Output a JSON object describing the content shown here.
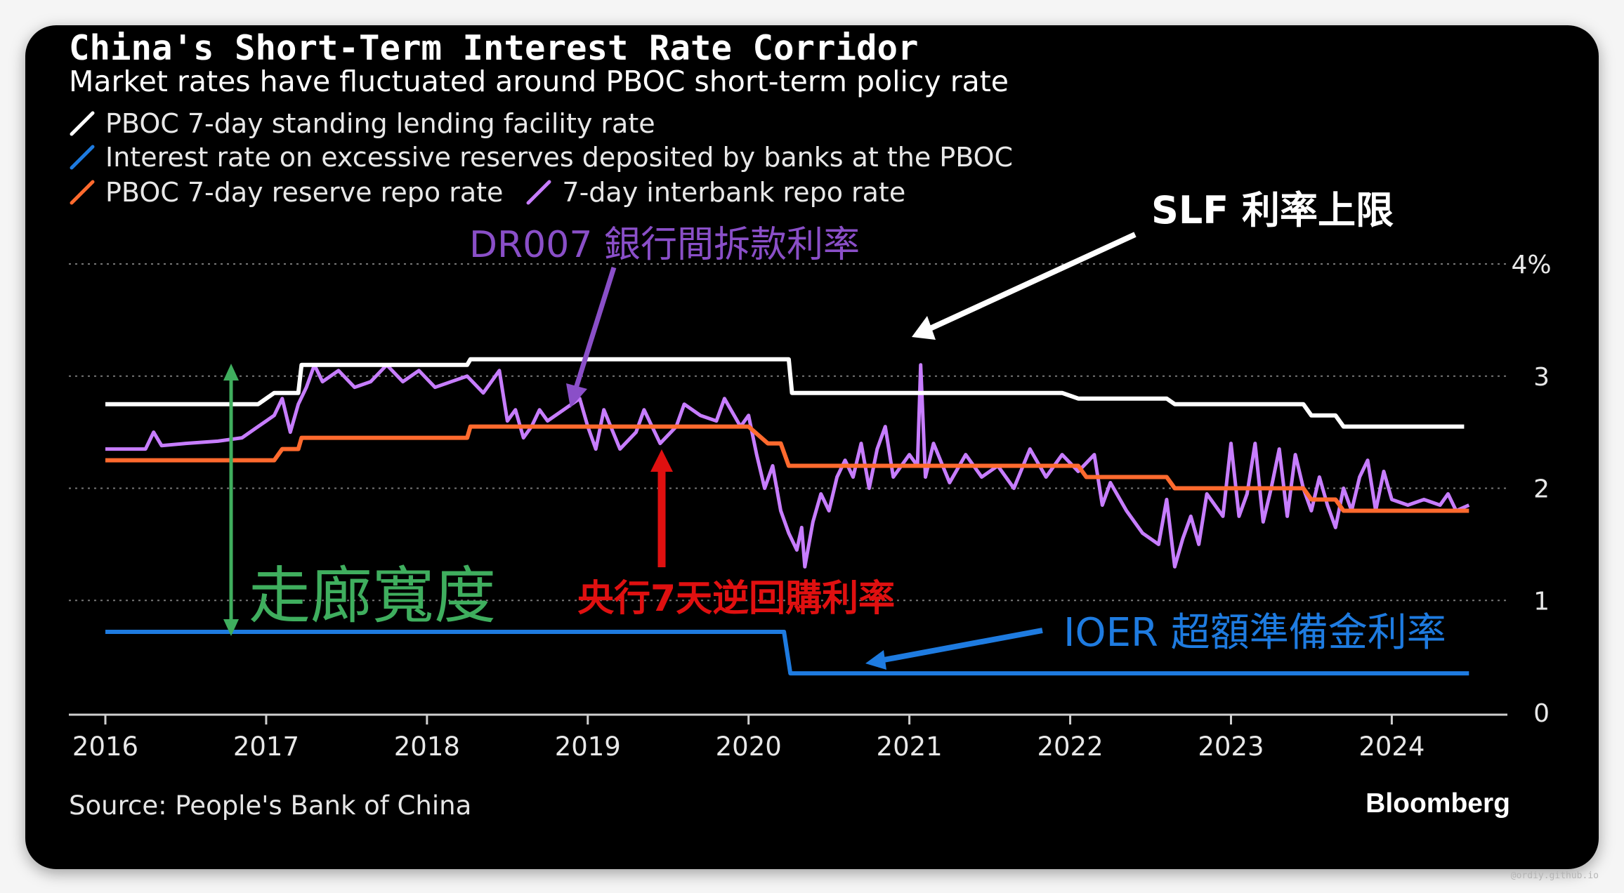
{
  "chart_data": {
    "type": "line",
    "title": "China's Short-Term Interest Rate Corridor",
    "subtitle": "Market rates have fluctuated around PBOC short-term policy rate",
    "ylim": [
      0,
      4
    ],
    "y_ticks": [
      "0",
      "1",
      "2",
      "3",
      "4%"
    ],
    "y_tick_values": [
      0,
      1,
      2,
      3,
      4
    ],
    "xlim": [
      2016,
      2024.85
    ],
    "x_ticks": [
      "2016",
      "2017",
      "2018",
      "2019",
      "2020",
      "2021",
      "2022",
      "2023",
      "2024"
    ],
    "x_tick_values": [
      2016,
      2017,
      2018,
      2019,
      2020,
      2021,
      2022,
      2023,
      2024
    ],
    "grid": true,
    "legend_position": "top-left",
    "series": [
      {
        "name": "PBOC 7-day standing lending facility rate",
        "color": "#ffffff",
        "step": true,
        "points": [
          [
            2016.0,
            2.75
          ],
          [
            2016.95,
            2.75
          ],
          [
            2017.05,
            2.85
          ],
          [
            2017.2,
            2.85
          ],
          [
            2017.22,
            3.1
          ],
          [
            2018.25,
            3.1
          ],
          [
            2018.27,
            3.15
          ],
          [
            2020.25,
            3.15
          ],
          [
            2020.27,
            2.85
          ],
          [
            2021.95,
            2.85
          ],
          [
            2022.05,
            2.8
          ],
          [
            2022.6,
            2.8
          ],
          [
            2022.65,
            2.75
          ],
          [
            2023.45,
            2.75
          ],
          [
            2023.5,
            2.65
          ],
          [
            2023.65,
            2.65
          ],
          [
            2023.7,
            2.55
          ],
          [
            2024.45,
            2.55
          ]
        ]
      },
      {
        "name": "Interest rate on excessive reserves deposited by banks at the PBOC",
        "color": "#1e7be0",
        "step": true,
        "points": [
          [
            2016.0,
            0.72
          ],
          [
            2020.22,
            0.72
          ],
          [
            2020.26,
            0.35
          ],
          [
            2024.48,
            0.35
          ]
        ]
      },
      {
        "name": "PBOC 7-day reserve repo rate",
        "color": "#ff6a2e",
        "step": true,
        "points": [
          [
            2016.0,
            2.25
          ],
          [
            2017.05,
            2.25
          ],
          [
            2017.1,
            2.35
          ],
          [
            2017.2,
            2.35
          ],
          [
            2017.22,
            2.45
          ],
          [
            2018.25,
            2.45
          ],
          [
            2018.27,
            2.55
          ],
          [
            2020.0,
            2.55
          ],
          [
            2020.12,
            2.4
          ],
          [
            2020.2,
            2.4
          ],
          [
            2020.25,
            2.2
          ],
          [
            2022.05,
            2.2
          ],
          [
            2022.1,
            2.1
          ],
          [
            2022.6,
            2.1
          ],
          [
            2022.65,
            2.0
          ],
          [
            2023.45,
            2.0
          ],
          [
            2023.5,
            1.9
          ],
          [
            2023.65,
            1.9
          ],
          [
            2023.7,
            1.8
          ],
          [
            2024.48,
            1.8
          ]
        ]
      },
      {
        "name": "7-day interbank repo rate",
        "color": "#c77dff",
        "step": false,
        "points": [
          [
            2016.0,
            2.35
          ],
          [
            2016.25,
            2.35
          ],
          [
            2016.3,
            2.5
          ],
          [
            2016.35,
            2.38
          ],
          [
            2016.5,
            2.4
          ],
          [
            2016.7,
            2.42
          ],
          [
            2016.85,
            2.45
          ],
          [
            2016.95,
            2.55
          ],
          [
            2017.05,
            2.65
          ],
          [
            2017.1,
            2.8
          ],
          [
            2017.15,
            2.5
          ],
          [
            2017.2,
            2.75
          ],
          [
            2017.25,
            2.9
          ],
          [
            2017.3,
            3.1
          ],
          [
            2017.35,
            2.95
          ],
          [
            2017.45,
            3.05
          ],
          [
            2017.55,
            2.9
          ],
          [
            2017.65,
            2.95
          ],
          [
            2017.75,
            3.1
          ],
          [
            2017.85,
            2.95
          ],
          [
            2017.95,
            3.05
          ],
          [
            2018.05,
            2.9
          ],
          [
            2018.15,
            2.95
          ],
          [
            2018.25,
            3.0
          ],
          [
            2018.35,
            2.85
          ],
          [
            2018.45,
            3.05
          ],
          [
            2018.5,
            2.6
          ],
          [
            2018.55,
            2.7
          ],
          [
            2018.6,
            2.45
          ],
          [
            2018.65,
            2.55
          ],
          [
            2018.7,
            2.7
          ],
          [
            2018.75,
            2.6
          ],
          [
            2018.85,
            2.7
          ],
          [
            2018.95,
            2.8
          ],
          [
            2019.0,
            2.55
          ],
          [
            2019.05,
            2.35
          ],
          [
            2019.1,
            2.7
          ],
          [
            2019.2,
            2.35
          ],
          [
            2019.3,
            2.5
          ],
          [
            2019.35,
            2.7
          ],
          [
            2019.45,
            2.4
          ],
          [
            2019.55,
            2.55
          ],
          [
            2019.6,
            2.75
          ],
          [
            2019.7,
            2.65
          ],
          [
            2019.8,
            2.6
          ],
          [
            2019.85,
            2.8
          ],
          [
            2019.95,
            2.55
          ],
          [
            2020.0,
            2.65
          ],
          [
            2020.05,
            2.3
          ],
          [
            2020.1,
            2.0
          ],
          [
            2020.15,
            2.2
          ],
          [
            2020.2,
            1.8
          ],
          [
            2020.25,
            1.6
          ],
          [
            2020.3,
            1.45
          ],
          [
            2020.33,
            1.65
          ],
          [
            2020.35,
            1.3
          ],
          [
            2020.4,
            1.7
          ],
          [
            2020.45,
            1.95
          ],
          [
            2020.5,
            1.8
          ],
          [
            2020.55,
            2.1
          ],
          [
            2020.6,
            2.25
          ],
          [
            2020.65,
            2.1
          ],
          [
            2020.7,
            2.4
          ],
          [
            2020.75,
            2.0
          ],
          [
            2020.8,
            2.35
          ],
          [
            2020.85,
            2.55
          ],
          [
            2020.9,
            2.1
          ],
          [
            2021.0,
            2.3
          ],
          [
            2021.05,
            2.2
          ],
          [
            2021.07,
            3.1
          ],
          [
            2021.1,
            2.1
          ],
          [
            2021.15,
            2.4
          ],
          [
            2021.25,
            2.05
          ],
          [
            2021.35,
            2.3
          ],
          [
            2021.45,
            2.1
          ],
          [
            2021.55,
            2.2
          ],
          [
            2021.65,
            2.0
          ],
          [
            2021.75,
            2.35
          ],
          [
            2021.85,
            2.1
          ],
          [
            2021.95,
            2.3
          ],
          [
            2022.05,
            2.15
          ],
          [
            2022.15,
            2.3
          ],
          [
            2022.2,
            1.85
          ],
          [
            2022.25,
            2.05
          ],
          [
            2022.35,
            1.8
          ],
          [
            2022.45,
            1.6
          ],
          [
            2022.55,
            1.5
          ],
          [
            2022.6,
            1.9
          ],
          [
            2022.65,
            1.3
          ],
          [
            2022.7,
            1.55
          ],
          [
            2022.75,
            1.75
          ],
          [
            2022.8,
            1.5
          ],
          [
            2022.85,
            1.95
          ],
          [
            2022.95,
            1.75
          ],
          [
            2023.0,
            2.4
          ],
          [
            2023.05,
            1.75
          ],
          [
            2023.1,
            1.95
          ],
          [
            2023.15,
            2.4
          ],
          [
            2023.2,
            1.7
          ],
          [
            2023.25,
            2.0
          ],
          [
            2023.3,
            2.35
          ],
          [
            2023.35,
            1.75
          ],
          [
            2023.4,
            2.3
          ],
          [
            2023.45,
            2.0
          ],
          [
            2023.5,
            1.8
          ],
          [
            2023.55,
            2.1
          ],
          [
            2023.6,
            1.85
          ],
          [
            2023.65,
            1.65
          ],
          [
            2023.7,
            2.0
          ],
          [
            2023.75,
            1.8
          ],
          [
            2023.8,
            2.1
          ],
          [
            2023.85,
            2.25
          ],
          [
            2023.9,
            1.8
          ],
          [
            2023.95,
            2.15
          ],
          [
            2024.0,
            1.9
          ],
          [
            2024.1,
            1.85
          ],
          [
            2024.2,
            1.9
          ],
          [
            2024.3,
            1.85
          ],
          [
            2024.35,
            1.95
          ],
          [
            2024.4,
            1.8
          ],
          [
            2024.48,
            1.85
          ]
        ]
      }
    ]
  },
  "legend": {
    "slf": "PBOC 7-day standing lending facility rate",
    "ioer": "Interest rate on excessive reserves deposited by banks at the PBOC",
    "repo": "PBOC 7-day reserve repo rate",
    "interbank": "7-day interbank repo rate"
  },
  "annotations": {
    "dr007": "DR007 銀行間拆款利率",
    "slf_cap": "SLF 利率上限",
    "corridor": "走廊寬度",
    "reverse_repo": "央行7天逆回購利率",
    "ioer": "IOER  超額準備金利率"
  },
  "colors": {
    "background": "#000000",
    "grid": "#777777",
    "annotation_purple": "#8a4fc8",
    "annotation_green": "#3fae5e",
    "annotation_red": "#e01010",
    "annotation_blue": "#1e7be0",
    "annotation_white": "#ffffff"
  },
  "source": "Source: People's Bank of China",
  "brand": "Bloomberg",
  "watermark": "@ordiy.github.io"
}
